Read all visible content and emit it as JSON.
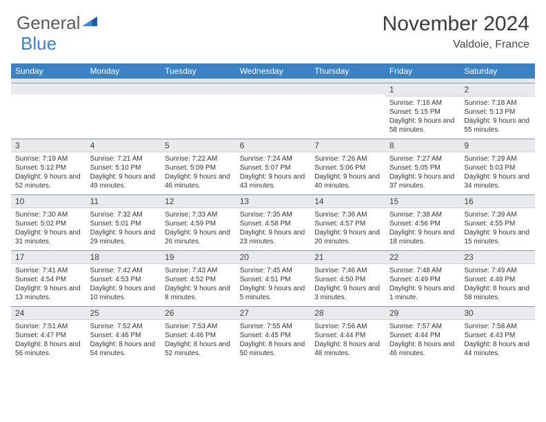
{
  "logo": {
    "part1": "General",
    "part2": "Blue"
  },
  "title": "November 2024",
  "location": "Valdoie, France",
  "colors": {
    "header_bg": "#3b82c4",
    "header_fg": "#ffffff",
    "daynum_bg": "#e8eaed",
    "cell_border": "#8a97a8",
    "text": "#333333",
    "logo_gray": "#5a5a5a",
    "logo_blue": "#3a7fc4"
  },
  "dow": [
    "Sunday",
    "Monday",
    "Tuesday",
    "Wednesday",
    "Thursday",
    "Friday",
    "Saturday"
  ],
  "weeks": [
    [
      null,
      null,
      null,
      null,
      null,
      {
        "n": "1",
        "sr": "7:16 AM",
        "ss": "5:15 PM",
        "dl": "9 hours and 58 minutes."
      },
      {
        "n": "2",
        "sr": "7:18 AM",
        "ss": "5:13 PM",
        "dl": "9 hours and 55 minutes."
      }
    ],
    [
      {
        "n": "3",
        "sr": "7:19 AM",
        "ss": "5:12 PM",
        "dl": "9 hours and 52 minutes."
      },
      {
        "n": "4",
        "sr": "7:21 AM",
        "ss": "5:10 PM",
        "dl": "9 hours and 49 minutes."
      },
      {
        "n": "5",
        "sr": "7:22 AM",
        "ss": "5:09 PM",
        "dl": "9 hours and 46 minutes."
      },
      {
        "n": "6",
        "sr": "7:24 AM",
        "ss": "5:07 PM",
        "dl": "9 hours and 43 minutes."
      },
      {
        "n": "7",
        "sr": "7:26 AM",
        "ss": "5:06 PM",
        "dl": "9 hours and 40 minutes."
      },
      {
        "n": "8",
        "sr": "7:27 AM",
        "ss": "5:05 PM",
        "dl": "9 hours and 37 minutes."
      },
      {
        "n": "9",
        "sr": "7:29 AM",
        "ss": "5:03 PM",
        "dl": "9 hours and 34 minutes."
      }
    ],
    [
      {
        "n": "10",
        "sr": "7:30 AM",
        "ss": "5:02 PM",
        "dl": "9 hours and 31 minutes."
      },
      {
        "n": "11",
        "sr": "7:32 AM",
        "ss": "5:01 PM",
        "dl": "9 hours and 29 minutes."
      },
      {
        "n": "12",
        "sr": "7:33 AM",
        "ss": "4:59 PM",
        "dl": "9 hours and 26 minutes."
      },
      {
        "n": "13",
        "sr": "7:35 AM",
        "ss": "4:58 PM",
        "dl": "9 hours and 23 minutes."
      },
      {
        "n": "14",
        "sr": "7:36 AM",
        "ss": "4:57 PM",
        "dl": "9 hours and 20 minutes."
      },
      {
        "n": "15",
        "sr": "7:38 AM",
        "ss": "4:56 PM",
        "dl": "9 hours and 18 minutes."
      },
      {
        "n": "16",
        "sr": "7:39 AM",
        "ss": "4:55 PM",
        "dl": "9 hours and 15 minutes."
      }
    ],
    [
      {
        "n": "17",
        "sr": "7:41 AM",
        "ss": "4:54 PM",
        "dl": "9 hours and 13 minutes."
      },
      {
        "n": "18",
        "sr": "7:42 AM",
        "ss": "4:53 PM",
        "dl": "9 hours and 10 minutes."
      },
      {
        "n": "19",
        "sr": "7:43 AM",
        "ss": "4:52 PM",
        "dl": "9 hours and 8 minutes."
      },
      {
        "n": "20",
        "sr": "7:45 AM",
        "ss": "4:51 PM",
        "dl": "9 hours and 5 minutes."
      },
      {
        "n": "21",
        "sr": "7:46 AM",
        "ss": "4:50 PM",
        "dl": "9 hours and 3 minutes."
      },
      {
        "n": "22",
        "sr": "7:48 AM",
        "ss": "4:49 PM",
        "dl": "9 hours and 1 minute."
      },
      {
        "n": "23",
        "sr": "7:49 AM",
        "ss": "4:48 PM",
        "dl": "8 hours and 58 minutes."
      }
    ],
    [
      {
        "n": "24",
        "sr": "7:51 AM",
        "ss": "4:47 PM",
        "dl": "8 hours and 56 minutes."
      },
      {
        "n": "25",
        "sr": "7:52 AM",
        "ss": "4:46 PM",
        "dl": "8 hours and 54 minutes."
      },
      {
        "n": "26",
        "sr": "7:53 AM",
        "ss": "4:46 PM",
        "dl": "8 hours and 52 minutes."
      },
      {
        "n": "27",
        "sr": "7:55 AM",
        "ss": "4:45 PM",
        "dl": "8 hours and 50 minutes."
      },
      {
        "n": "28",
        "sr": "7:56 AM",
        "ss": "4:44 PM",
        "dl": "8 hours and 48 minutes."
      },
      {
        "n": "29",
        "sr": "7:57 AM",
        "ss": "4:44 PM",
        "dl": "8 hours and 46 minutes."
      },
      {
        "n": "30",
        "sr": "7:58 AM",
        "ss": "4:43 PM",
        "dl": "8 hours and 44 minutes."
      }
    ]
  ],
  "labels": {
    "sunrise": "Sunrise: ",
    "sunset": "Sunset: ",
    "daylight": "Daylight: "
  }
}
